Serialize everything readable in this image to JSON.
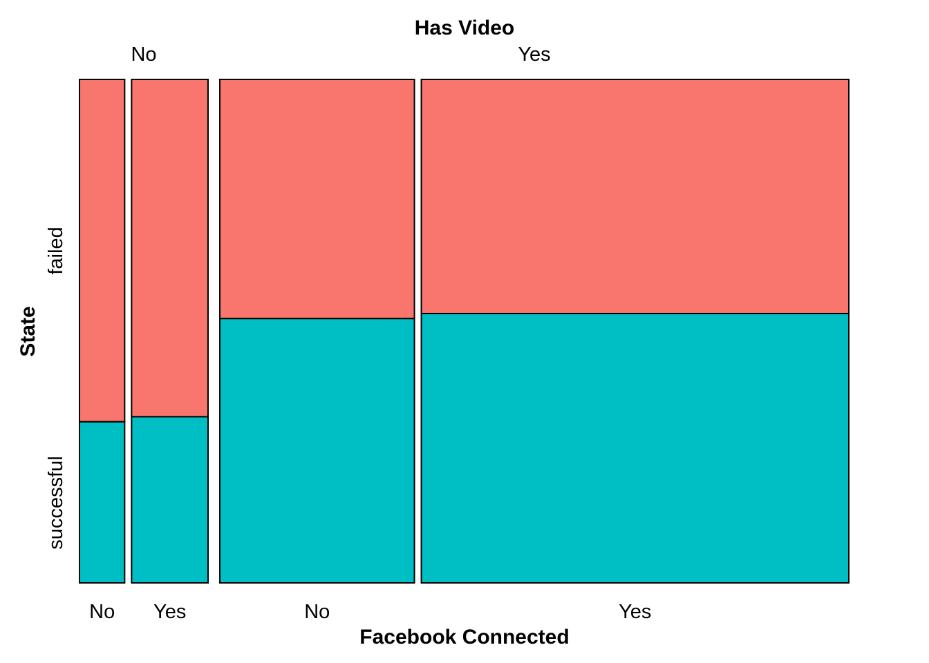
{
  "chart_data": {
    "type": "mosaic",
    "title": "Has Video",
    "xlabel": "Facebook Connected",
    "ylabel": "State",
    "outer_variable": "Has Video",
    "inner_variable": "Facebook Connected",
    "fill_variable": "State",
    "outer_categories": [
      "No",
      "Yes"
    ],
    "inner_categories": [
      "No",
      "Yes"
    ],
    "fill_categories": [
      "failed",
      "successful"
    ],
    "colors": {
      "failed": "#F8766D",
      "successful": "#00BFC4"
    },
    "cells": [
      {
        "has_video": "No",
        "facebook_connected": "No",
        "width_share": 0.065,
        "failed": 0.68,
        "successful": 0.32
      },
      {
        "has_video": "No",
        "facebook_connected": "Yes",
        "width_share": 0.11,
        "failed": 0.67,
        "successful": 0.33
      },
      {
        "has_video": "Yes",
        "facebook_connected": "No",
        "width_share": 0.28,
        "failed": 0.475,
        "successful": 0.525
      },
      {
        "has_video": "Yes",
        "facebook_connected": "Yes",
        "width_share": 0.615,
        "failed": 0.465,
        "successful": 0.535
      }
    ]
  }
}
